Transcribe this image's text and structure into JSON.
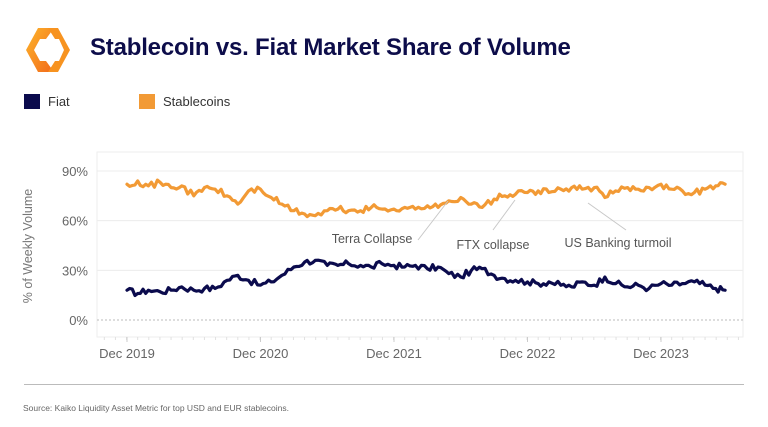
{
  "header": {
    "title": "Stablecoin vs. Fiat Market Share of Volume",
    "logo": "kaiko-hexagon-logo-icon"
  },
  "legend": [
    {
      "label": "Fiat",
      "color": "#0b0b4d"
    },
    {
      "label": "Stablecoins",
      "color": "#f29a35"
    }
  ],
  "footer": {
    "source": "Source: Kaiko Liquidity Asset Metric for top USD and EUR stablecoins."
  },
  "chart_data": {
    "type": "line",
    "title": "Stablecoin vs. Fiat Market Share of Volume",
    "xlabel": "",
    "ylabel": "% of Weekly Volume",
    "ylim": [
      -10,
      100
    ],
    "yticks": [
      0,
      30,
      60,
      90
    ],
    "ytick_labels": [
      "0%",
      "30%",
      "60%",
      "90%"
    ],
    "xticks": [
      "Dec 2019",
      "Dec 2020",
      "Dec 2021",
      "Dec 2022",
      "Dec 2023"
    ],
    "x_range_years": [
      2019.7,
      2024.85
    ],
    "grid": true,
    "legend_position": "top-left",
    "x": [
      2019.92,
      2020.0,
      2020.08,
      2020.17,
      2020.25,
      2020.33,
      2020.42,
      2020.5,
      2020.58,
      2020.67,
      2020.75,
      2020.83,
      2020.92,
      2021.0,
      2021.08,
      2021.17,
      2021.25,
      2021.33,
      2021.42,
      2021.5,
      2021.58,
      2021.67,
      2021.75,
      2021.83,
      2021.92,
      2022.0,
      2022.08,
      2022.17,
      2022.25,
      2022.33,
      2022.42,
      2022.5,
      2022.58,
      2022.67,
      2022.75,
      2022.83,
      2022.92,
      2023.0,
      2023.08,
      2023.17,
      2023.25,
      2023.33,
      2023.42,
      2023.5,
      2023.58,
      2023.67,
      2023.75,
      2023.83,
      2023.92,
      2024.0,
      2024.08,
      2024.17,
      2024.25,
      2024.33,
      2024.4
    ],
    "series": [
      {
        "name": "Stablecoins",
        "color": "#f29a35",
        "values": [
          82,
          84,
          81,
          83,
          80,
          81,
          75,
          80,
          79,
          75,
          70,
          78,
          79,
          74,
          70,
          66,
          64,
          63,
          66,
          67,
          66,
          66,
          68,
          67,
          67,
          68,
          67,
          69,
          68,
          72,
          74,
          70,
          68,
          73,
          75,
          76,
          77,
          78,
          77,
          79,
          80,
          79,
          80,
          74,
          78,
          80,
          79,
          80,
          82,
          79,
          78,
          77,
          79,
          81,
          82
        ]
      },
      {
        "name": "Fiat",
        "color": "#0b0b4d",
        "values": [
          18,
          16,
          18,
          17,
          18,
          20,
          18,
          19,
          19,
          24,
          27,
          24,
          21,
          23,
          27,
          32,
          35,
          36,
          33,
          33,
          34,
          33,
          32,
          34,
          33,
          32,
          33,
          31,
          32,
          28,
          26,
          30,
          31,
          27,
          25,
          24,
          23,
          22,
          23,
          21,
          20,
          23,
          21,
          26,
          22,
          20,
          21,
          19,
          22,
          21,
          22,
          23,
          21,
          19,
          18
        ]
      }
    ],
    "annotations": [
      {
        "text": "Terra Collapse",
        "x": 2022.37
      },
      {
        "text": "FTX collapse",
        "x": 2022.86
      },
      {
        "text": "US Banking turmoil",
        "x": 2023.2
      }
    ]
  }
}
